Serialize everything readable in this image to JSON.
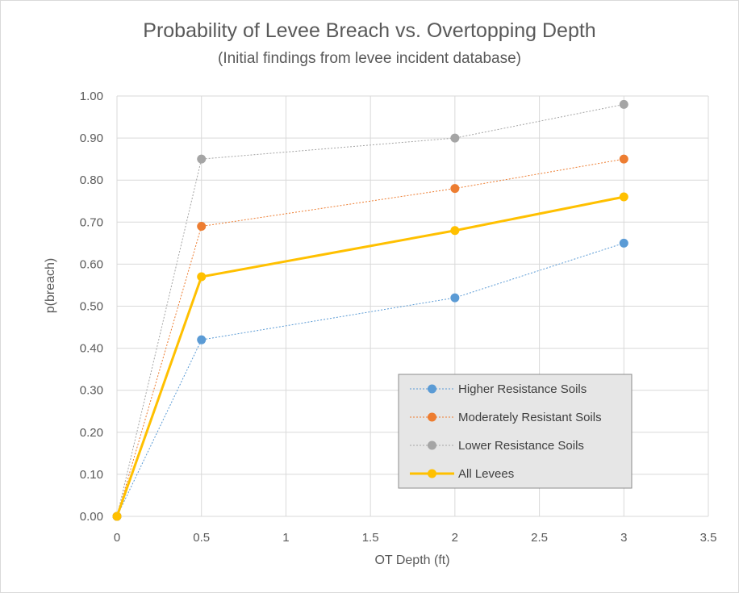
{
  "chart_data": {
    "type": "line",
    "title": "Probability of Levee Breach vs. Overtopping Depth",
    "subtitle": "(Initial findings from levee incident database)",
    "xlabel": "OT Depth (ft)",
    "ylabel": "p(breach)",
    "xlim": [
      0,
      3.5
    ],
    "ylim": [
      0,
      1.0
    ],
    "x_ticks": [
      "0",
      "0.5",
      "1",
      "1.5",
      "2",
      "2.5",
      "3",
      "3.5"
    ],
    "y_ticks": [
      "0.00",
      "0.10",
      "0.20",
      "0.30",
      "0.40",
      "0.50",
      "0.60",
      "0.70",
      "0.80",
      "0.90",
      "1.00"
    ],
    "grid": true,
    "legend_position": "bottom-right",
    "x": [
      0,
      0.5,
      2,
      3
    ],
    "series": [
      {
        "name": "Higher Resistance Soils",
        "values": [
          0,
          0.42,
          0.52,
          0.65
        ],
        "color": "#5b9bd5",
        "style": "dotted"
      },
      {
        "name": "Moderately Resistant Soils",
        "values": [
          0,
          0.69,
          0.78,
          0.85
        ],
        "color": "#ed7d31",
        "style": "dotted"
      },
      {
        "name": "Lower Resistance Soils",
        "values": [
          0,
          0.85,
          0.9,
          0.98
        ],
        "color": "#a5a5a5",
        "style": "dotted"
      },
      {
        "name": "All Levees",
        "values": [
          0,
          0.57,
          0.68,
          0.76
        ],
        "color": "#ffc000",
        "style": "solid"
      }
    ]
  }
}
